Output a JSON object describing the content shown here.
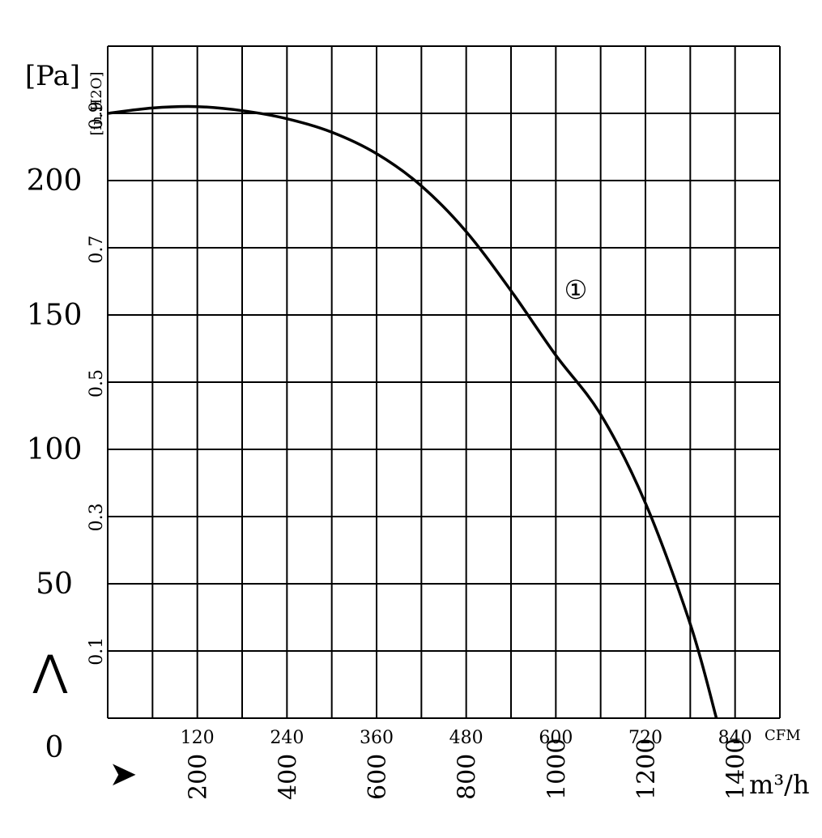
{
  "chart_data": {
    "type": "line",
    "title": "",
    "left_axis": {
      "unit_label": "[Pa]",
      "ticks": [
        "0",
        "50",
        "100",
        "150",
        "200"
      ],
      "range": [
        0,
        250
      ]
    },
    "inner_axis": {
      "unit_label": "[in.H2O]",
      "ticks": [
        "0.1",
        "0.3",
        "0.5",
        "0.7",
        "0.9"
      ]
    },
    "x_axis_cfm": {
      "unit_label": "CFM",
      "ticks": [
        "120",
        "240",
        "360",
        "480",
        "600",
        "720",
        "840"
      ],
      "range": [
        0,
        900
      ]
    },
    "x_axis_m3h": {
      "unit_label": "m³/h",
      "ticks": [
        "200",
        "400",
        "600",
        "800",
        "1000",
        "1200",
        "1400"
      ]
    },
    "arrow_y": "⋀",
    "arrow_x": "➤",
    "grid": true,
    "series": [
      {
        "name": "①",
        "x": [
          0,
          60,
          120,
          180,
          240,
          300,
          360,
          420,
          480,
          540,
          600,
          660,
          720,
          780,
          815
        ],
        "y": [
          225,
          227,
          227.5,
          226,
          223,
          218,
          210,
          198,
          181,
          159,
          135,
          113,
          80,
          35,
          0
        ]
      }
    ]
  }
}
